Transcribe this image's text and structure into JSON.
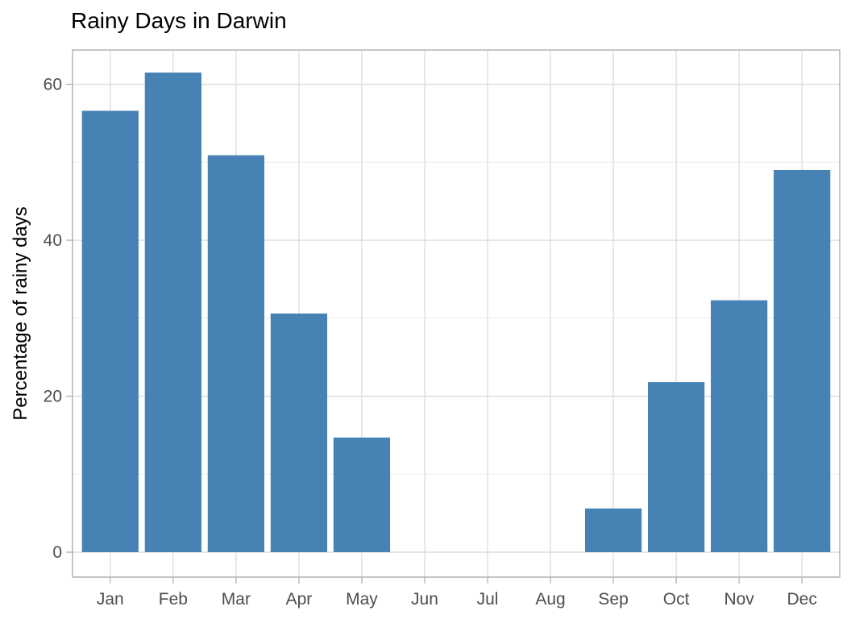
{
  "chart_data": {
    "type": "bar",
    "title": "Rainy Days in Darwin",
    "xlabel": "",
    "ylabel": "Percentage of rainy days",
    "categories": [
      "Jan",
      "Feb",
      "Mar",
      "Apr",
      "May",
      "Jun",
      "Jul",
      "Aug",
      "Sep",
      "Oct",
      "Nov",
      "Dec"
    ],
    "values": [
      56.6,
      61.5,
      50.9,
      30.6,
      14.7,
      0,
      0,
      0,
      5.6,
      21.8,
      32.3,
      49.0
    ],
    "y_ticks": [
      0,
      20,
      40,
      60
    ],
    "y_minor_ticks": [
      10,
      30,
      50
    ],
    "ylim": [
      -3.2,
      64.4
    ],
    "grid": true,
    "legend": "none",
    "colors": {
      "bar": "#4682B4",
      "grid_major": "#dcdcdc",
      "grid_minor": "#e9e9e9",
      "panel_border": "#b3b3b3",
      "axis_tick": "#b3b3b3",
      "axis_text": "#4d4d4d",
      "title_text": "#000000"
    }
  }
}
